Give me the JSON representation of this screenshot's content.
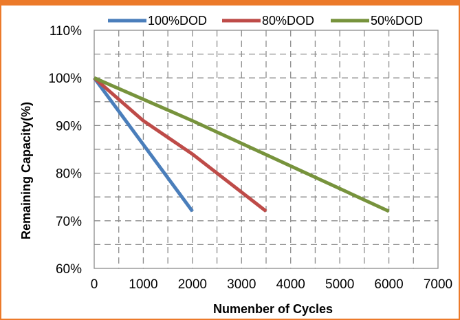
{
  "chart_data": {
    "type": "line",
    "title": "",
    "xlabel": "Numenber of Cycles",
    "ylabel": "Remaining Capacity(%)",
    "x_ticks": [
      "0",
      "1000",
      "2000",
      "3000",
      "4000",
      "5000",
      "6000",
      "7000"
    ],
    "y_ticks": [
      "60%",
      "70%",
      "80%",
      "90%",
      "100%",
      "110%"
    ],
    "xlim": [
      0,
      7000
    ],
    "ylim": [
      60,
      110
    ],
    "grid": true,
    "legend_position": "top",
    "series": [
      {
        "name": "100%DOD",
        "color": "#4a7ebb",
        "points": [
          [
            0,
            100
          ],
          [
            2000,
            72
          ]
        ]
      },
      {
        "name": "80%DOD",
        "color": "#be4b48",
        "points": [
          [
            0,
            100
          ],
          [
            1000,
            91
          ],
          [
            2000,
            84
          ],
          [
            3500,
            72
          ]
        ]
      },
      {
        "name": "50%DOD",
        "color": "#77933c",
        "points": [
          [
            0,
            100
          ],
          [
            2000,
            91
          ],
          [
            4000,
            81.5
          ],
          [
            6000,
            72
          ]
        ]
      }
    ]
  },
  "colors": {
    "frame_accent": "#ec7a2a",
    "grid": "#8c8c8c"
  }
}
